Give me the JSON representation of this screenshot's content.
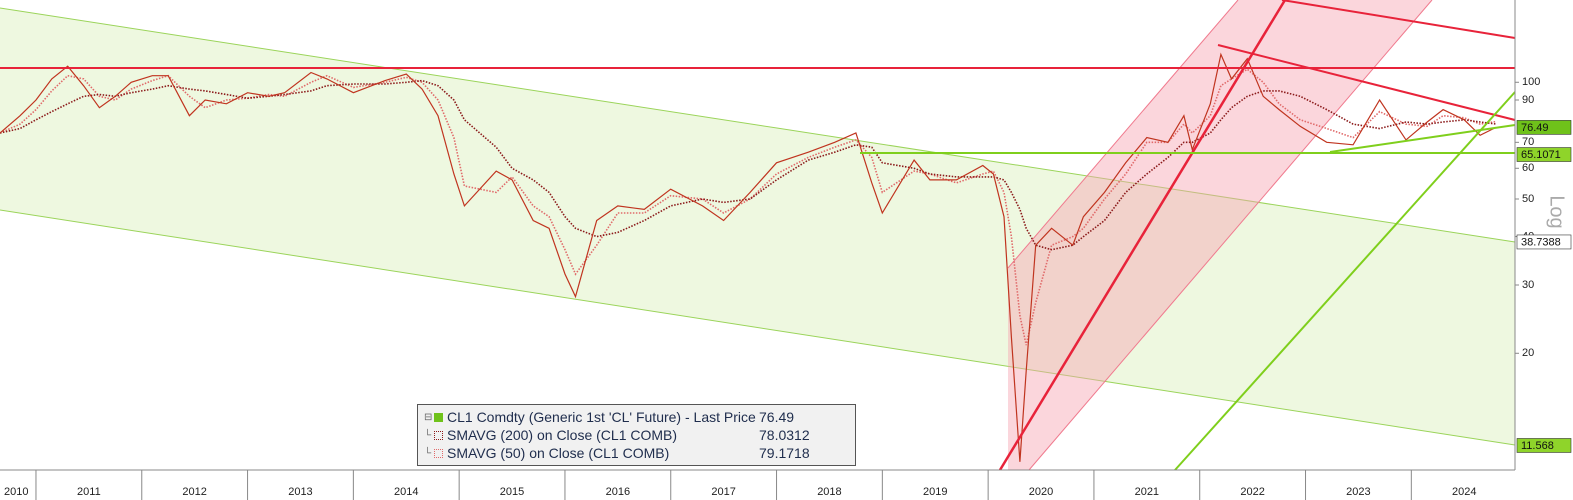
{
  "chart_data": {
    "type": "line",
    "log_scale": true,
    "grid": false,
    "y_label": "Log",
    "xlim": [
      2010.66,
      2024.98
    ],
    "xticks": [
      2010,
      2011,
      2012,
      2013,
      2014,
      2015,
      2016,
      2017,
      2018,
      2019,
      2020,
      2021,
      2022,
      2023,
      2024
    ],
    "ylim": [
      10,
      163
    ],
    "yticks": [
      20,
      30,
      40,
      50,
      60,
      70,
      90,
      100
    ],
    "x": [
      2010.66,
      2010.85,
      2011.0,
      2011.15,
      2011.3,
      2011.45,
      2011.6,
      2011.75,
      2011.9,
      2012.1,
      2012.25,
      2012.45,
      2012.6,
      2012.8,
      2013.0,
      2013.2,
      2013.35,
      2013.6,
      2013.75,
      2014.0,
      2014.3,
      2014.5,
      2014.65,
      2014.8,
      2014.95,
      2015.05,
      2015.35,
      2015.5,
      2015.7,
      2015.85,
      2016.0,
      2016.1,
      2016.3,
      2016.5,
      2016.75,
      2017.0,
      2017.3,
      2017.5,
      2017.75,
      2018.0,
      2018.3,
      2018.55,
      2018.75,
      2018.9,
      2019.0,
      2019.3,
      2019.45,
      2019.7,
      2019.95,
      2020.05,
      2020.15,
      2020.22,
      2020.3,
      2020.36,
      2020.45,
      2020.6,
      2020.8,
      2020.9,
      2021.1,
      2021.3,
      2021.5,
      2021.7,
      2021.85,
      2021.93,
      2022.1,
      2022.2,
      2022.3,
      2022.45,
      2022.6,
      2022.75,
      2022.95,
      2023.2,
      2023.45,
      2023.7,
      2023.95,
      2024.15,
      2024.3,
      2024.5,
      2024.65,
      2024.8
    ],
    "series": [
      {
        "name": "CL1 Comdty (Generic 1st 'CL' Future) - Last Price",
        "color": "#c0341f",
        "legend_color": "#6fc21a",
        "style": "solid",
        "values": [
          74,
          82,
          90,
          102,
          110,
          98,
          86,
          92,
          100,
          104,
          104,
          82,
          90,
          88,
          94,
          92,
          94,
          106,
          102,
          94,
          101,
          105,
          96,
          82,
          58,
          48,
          59,
          56,
          44,
          42,
          32,
          28,
          44,
          48,
          47,
          53,
          48,
          44,
          52,
          62,
          66,
          70,
          74,
          55,
          46,
          63,
          56,
          56,
          61,
          58,
          45,
          22,
          10.5,
          18,
          38,
          42,
          38,
          45,
          52,
          62,
          72,
          70,
          82,
          67,
          88,
          118,
          102,
          115,
          92,
          85,
          77,
          70,
          69,
          90,
          71,
          79,
          85,
          80,
          73,
          76.49
        ]
      },
      {
        "name": "SMAVG (200)  on Close (CL1 COMB)",
        "color": "#8b1a1a",
        "style": "dotted",
        "values": [
          74,
          76,
          80,
          84,
          88,
          92,
          93,
          92,
          94,
          96,
          98,
          96,
          95,
          93,
          91,
          92,
          93,
          95,
          98,
          99,
          99,
          100,
          101,
          98,
          90,
          80,
          68,
          60,
          56,
          52,
          45,
          42,
          40,
          41,
          44,
          48,
          50,
          49,
          50,
          56,
          63,
          66,
          69,
          68,
          62,
          60,
          58,
          57,
          57,
          57,
          56,
          52,
          47,
          42,
          38,
          37,
          38,
          40,
          44,
          52,
          58,
          64,
          70,
          70,
          74,
          80,
          86,
          92,
          95,
          95,
          92,
          85,
          78,
          76,
          79,
          78,
          79,
          80,
          79,
          78.0312
        ]
      },
      {
        "name": "SMAVG (50)  on Close (CL1 COMB)",
        "color": "#e06a6a",
        "style": "dotted",
        "values": [
          74,
          78,
          85,
          95,
          104,
          102,
          92,
          90,
          96,
          101,
          104,
          92,
          86,
          90,
          91,
          93,
          92,
          100,
          104,
          97,
          100,
          103,
          100,
          90,
          72,
          54,
          52,
          57,
          48,
          45,
          37,
          32,
          38,
          46,
          46,
          51,
          50,
          46,
          50,
          58,
          64,
          68,
          71,
          64,
          52,
          59,
          58,
          55,
          58,
          59,
          52,
          40,
          25,
          21,
          27,
          38,
          40,
          42,
          50,
          58,
          70,
          70,
          78,
          74,
          82,
          98,
          102,
          108,
          100,
          88,
          80,
          76,
          72,
          84,
          78,
          77,
          82,
          81,
          78,
          79.1718
        ]
      }
    ],
    "level_labels": [
      {
        "value": 65.1071,
        "color": "#8fd42a"
      },
      {
        "value": 38.7388,
        "color": "#ffffff"
      },
      {
        "value": 11.568,
        "color": "#8fd42a"
      }
    ]
  }
}
